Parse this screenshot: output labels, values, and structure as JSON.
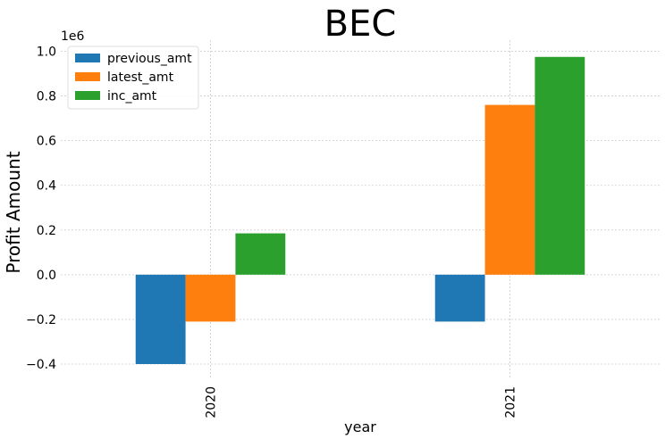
{
  "chart_data": {
    "type": "bar",
    "title": "BEC",
    "xlabel": "year",
    "ylabel": "Profit Amount",
    "y_scale_label": "1e6",
    "categories": [
      "2020",
      "2021"
    ],
    "series": [
      {
        "name": "previous_amt",
        "color": "#1f77b4",
        "values": [
          -400000,
          -210000
        ]
      },
      {
        "name": "latest_amt",
        "color": "#ff7f0e",
        "values": [
          -210000,
          760000
        ]
      },
      {
        "name": "inc_amt",
        "color": "#2ca02c",
        "values": [
          185000,
          975000
        ]
      }
    ],
    "ylim": [
      -0.46,
      1.05
    ],
    "yticks": [
      -0.4,
      -0.2,
      0.0,
      0.2,
      0.4,
      0.6,
      0.8,
      1.0
    ],
    "ytick_labels": [
      "−0.4",
      "−0.2",
      "0.0",
      "0.2",
      "0.4",
      "0.6",
      "0.8",
      "1.0"
    ],
    "grid": true,
    "legend_position": "top-left"
  }
}
